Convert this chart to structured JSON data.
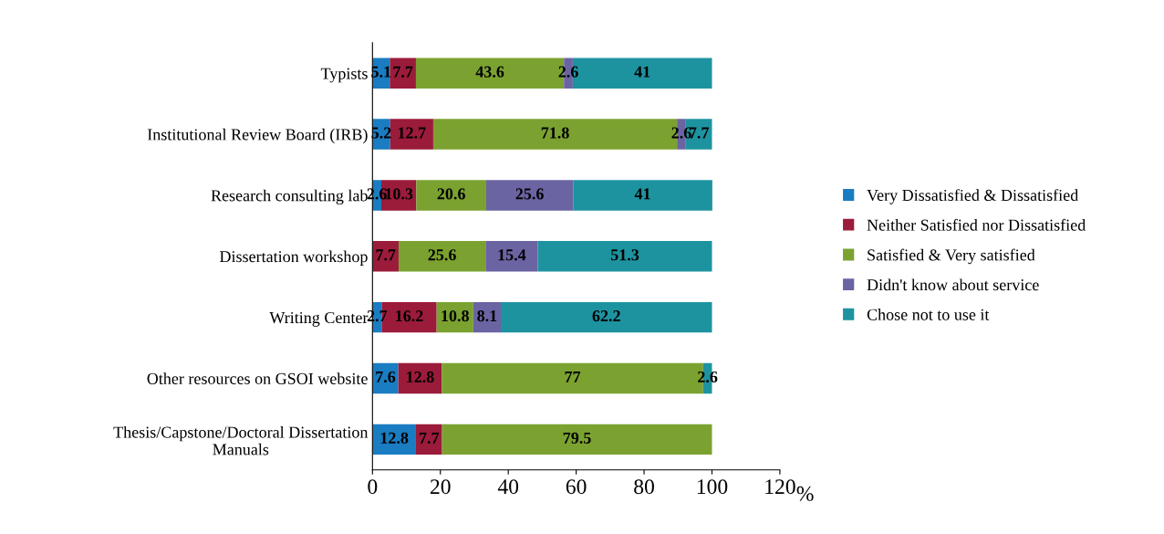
{
  "chart_data": {
    "type": "bar",
    "orientation": "horizontal",
    "stacked": true,
    "categories": [
      "Typists",
      "Institutional Review Board (IRB)",
      "Research consulting lab",
      "Dissertation workshop",
      "Writing Center",
      "Other resources on GSOI website",
      "Thesis/Capstone/Doctoral Dissertation\nManuals"
    ],
    "series": [
      {
        "name": "Very Dissatisfied & Dissatisfied",
        "color": "#1a7cc1",
        "values": [
          5.1,
          5.2,
          2.6,
          null,
          2.7,
          7.6,
          12.8
        ]
      },
      {
        "name": "Neither Satisfied nor Dissatisfied",
        "color": "#9b1b3b",
        "values": [
          7.7,
          12.7,
          10.3,
          7.7,
          16.2,
          12.8,
          7.7
        ]
      },
      {
        "name": "Satisfied & Very satisfied",
        "color": "#7ba230",
        "values": [
          43.6,
          71.8,
          20.6,
          25.6,
          10.8,
          77,
          79.5
        ]
      },
      {
        "name": "Didn't know about service",
        "color": "#6b64a3",
        "values": [
          2.6,
          2.6,
          25.6,
          15.4,
          8.1,
          null,
          null
        ]
      },
      {
        "name": "Chose not to use it",
        "color": "#1e93a0",
        "values": [
          41,
          7.7,
          41,
          51.3,
          62.2,
          2.6,
          null
        ]
      }
    ],
    "xlim": [
      0,
      120
    ],
    "xticks": [
      0,
      20,
      40,
      60,
      80,
      100,
      120
    ],
    "xlabel": "%",
    "data_labels": true,
    "legend": "right",
    "grid": false
  }
}
